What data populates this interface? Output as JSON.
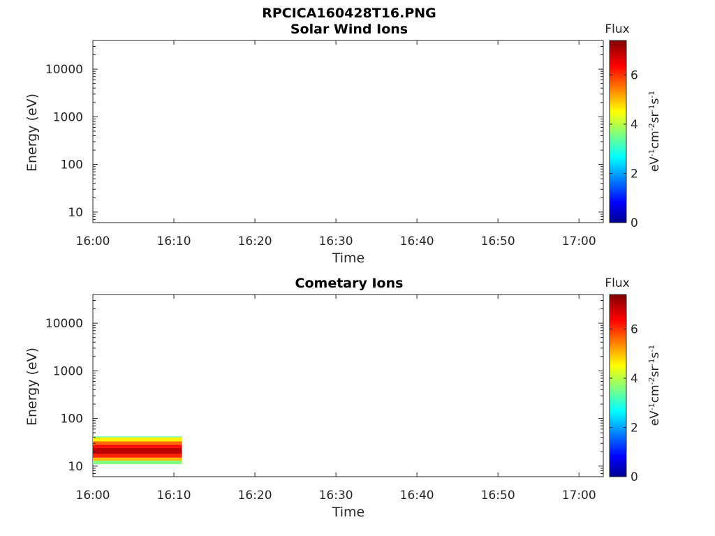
{
  "figure_title": "RPCICA160428T16.PNG",
  "chart_data": [
    {
      "type": "heatmap",
      "title": "Solar Wind Ions",
      "xlabel": "Time",
      "ylabel": "Energy (eV)",
      "x_ticks": [
        "16:00",
        "16:10",
        "16:20",
        "16:30",
        "16:40",
        "16:50",
        "17:00"
      ],
      "xlim": [
        "16:00",
        "17:03"
      ],
      "y_scale": "log",
      "y_ticks": [
        {
          "value": 10,
          "label": "10"
        },
        {
          "value": 100,
          "label": "100"
        },
        {
          "value": 1000,
          "label": "1000"
        },
        {
          "value": 10000,
          "label": "10000"
        }
      ],
      "ylim": [
        6,
        40000
      ],
      "colorbar": {
        "title": "Flux",
        "label": "eV-1cm-2sr-1s-1",
        "ticks": [
          0,
          2,
          4,
          6
        ],
        "range": [
          0,
          7.4
        ],
        "colormap": "jet"
      },
      "data": []
    },
    {
      "type": "heatmap",
      "title": "Cometary Ions",
      "xlabel": "Time",
      "ylabel": "Energy (eV)",
      "x_ticks": [
        "16:00",
        "16:10",
        "16:20",
        "16:30",
        "16:40",
        "16:50",
        "17:00"
      ],
      "xlim": [
        "16:00",
        "17:03"
      ],
      "y_scale": "log",
      "y_ticks": [
        {
          "value": 10,
          "label": "10"
        },
        {
          "value": 100,
          "label": "100"
        },
        {
          "value": 1000,
          "label": "1000"
        },
        {
          "value": 10000,
          "label": "10000"
        }
      ],
      "ylim": [
        6,
        40000
      ],
      "colorbar": {
        "title": "Flux",
        "label": "eV-1cm-2sr-1s-1",
        "ticks": [
          0,
          2,
          4,
          6
        ],
        "range": [
          0,
          7.4
        ],
        "colormap": "jet"
      },
      "data": [
        {
          "time_start": "16:00",
          "time_end": "16:11",
          "energy_min": 40,
          "energy_max": 42,
          "flux": 3.4
        },
        {
          "time_start": "16:00",
          "time_end": "16:11",
          "energy_min": 33,
          "energy_max": 40,
          "flux": 4.6
        },
        {
          "time_start": "16:00",
          "time_end": "16:11",
          "energy_min": 28,
          "energy_max": 33,
          "flux": 5.6
        },
        {
          "time_start": "16:00",
          "time_end": "16:11",
          "energy_min": 24,
          "energy_max": 28,
          "flux": 6.3
        },
        {
          "time_start": "16:00",
          "time_end": "16:11",
          "energy_min": 18,
          "energy_max": 24,
          "flux": 6.9
        },
        {
          "time_start": "16:00",
          "time_end": "16:11",
          "energy_min": 15,
          "energy_max": 18,
          "flux": 6.1
        },
        {
          "time_start": "16:00",
          "time_end": "16:11",
          "energy_min": 13,
          "energy_max": 15,
          "flux": 5.0
        },
        {
          "time_start": "16:00",
          "time_end": "16:11",
          "energy_min": 11,
          "energy_max": 13,
          "flux": 3.6
        }
      ]
    }
  ]
}
